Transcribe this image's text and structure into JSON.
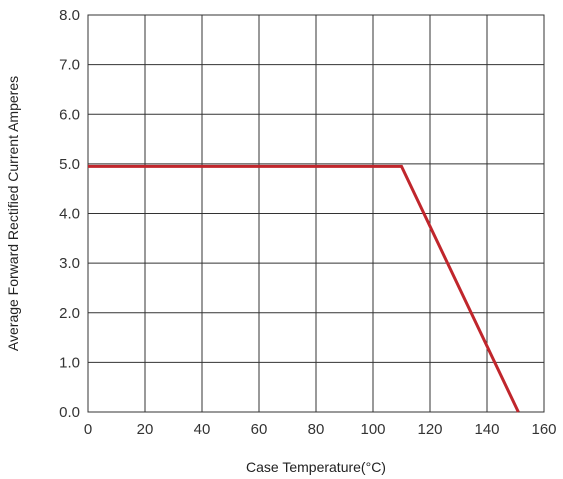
{
  "chart_data": {
    "type": "line",
    "title": "",
    "xlabel": "Case Temperature(°C)",
    "ylabel": "Average Forward Rectified Current Amperes",
    "xlim": [
      0,
      160
    ],
    "ylim": [
      0,
      8
    ],
    "x_ticks": [
      0,
      20,
      40,
      60,
      80,
      100,
      120,
      140,
      160
    ],
    "y_ticks": [
      "0.0",
      "1.0",
      "2.0",
      "3.0",
      "4.0",
      "5.0",
      "6.0",
      "7.0",
      "8.0"
    ],
    "grid": true,
    "legend": "none",
    "series": [
      {
        "color": "#c0262c",
        "x": [
          0,
          110,
          151
        ],
        "y": [
          4.95,
          4.95,
          0
        ]
      }
    ]
  }
}
